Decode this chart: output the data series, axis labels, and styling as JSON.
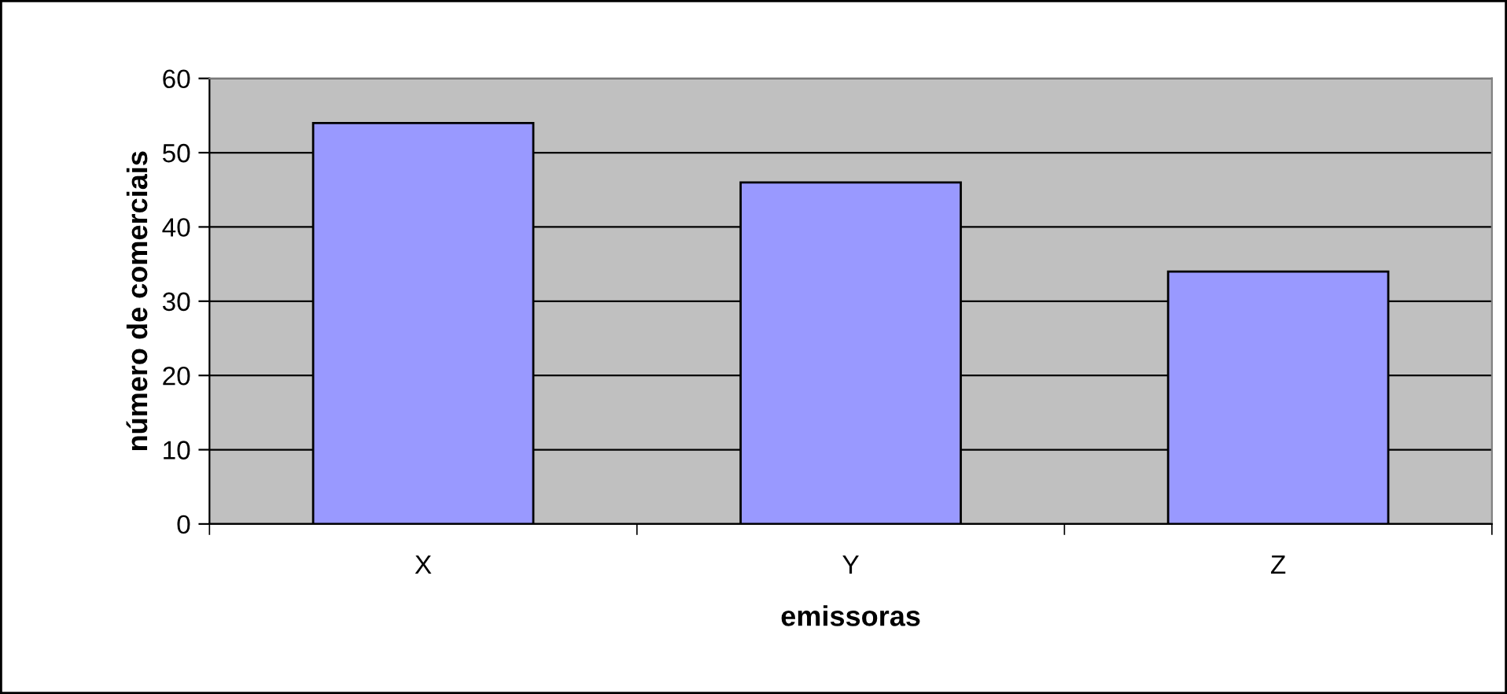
{
  "chart_data": {
    "type": "bar",
    "xlabel": "emissoras",
    "ylabel": "número de comerciais",
    "categories": [
      "X",
      "Y",
      "Z"
    ],
    "values": [
      54,
      46,
      34
    ],
    "color": "#9999ff",
    "ylim": [
      0,
      60
    ],
    "yticks": [
      0,
      10,
      20,
      30,
      40,
      50,
      60
    ],
    "grid": "y",
    "legend": false
  }
}
